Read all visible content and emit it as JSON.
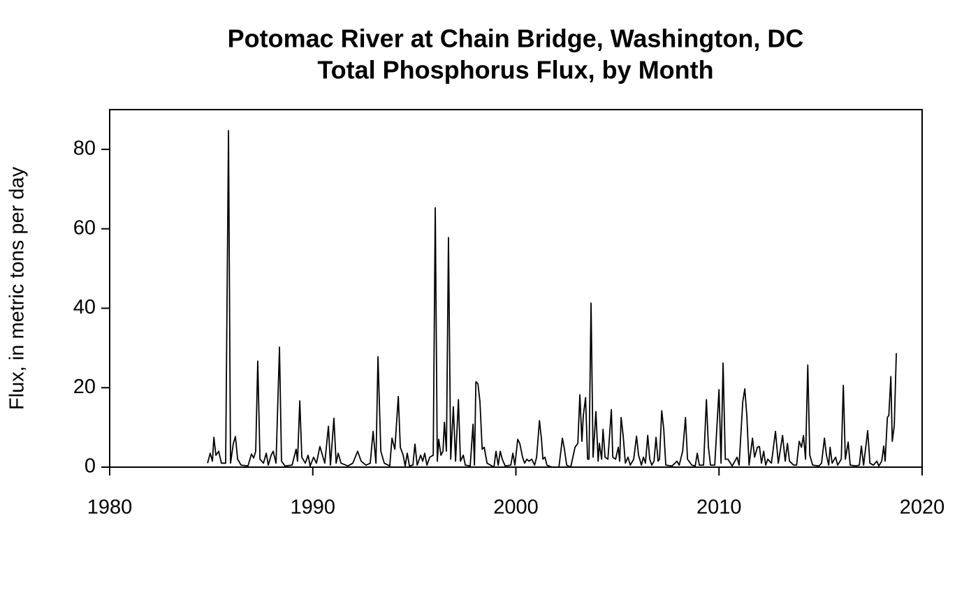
{
  "chart_data": {
    "type": "line",
    "title": "Potomac River at Chain Bridge, Washington, DC",
    "subtitle": "Total Phosphorus Flux, by Month",
    "ylabel": "Flux, in metric tons per day",
    "xlim": [
      1980,
      2020
    ],
    "xticks": [
      1980,
      1990,
      2000,
      2010,
      2020
    ],
    "ylim": [
      0,
      90
    ],
    "yticks": [
      0,
      20,
      40,
      60,
      80
    ],
    "series": [
      {
        "color": "#000000",
        "x": [
          1984.82,
          1984.95,
          1985.06,
          1985.13,
          1985.23,
          1985.37,
          1985.5,
          1985.71,
          1985.85,
          1985.95,
          1986.09,
          1986.19,
          1986.3,
          1986.47,
          1986.81,
          1986.98,
          1987.09,
          1987.19,
          1987.29,
          1987.4,
          1987.57,
          1987.71,
          1987.81,
          1987.95,
          1988.05,
          1988.19,
          1988.36,
          1988.46,
          1988.63,
          1988.98,
          1989.18,
          1989.25,
          1989.36,
          1989.46,
          1989.63,
          1989.77,
          1989.87,
          1990.04,
          1990.18,
          1990.35,
          1990.59,
          1990.77,
          1990.87,
          1991.04,
          1991.15,
          1991.25,
          1991.39,
          1991.73,
          1991.97,
          1992.21,
          1992.38,
          1992.62,
          1992.83,
          1992.97,
          1993.11,
          1993.21,
          1993.35,
          1993.52,
          1993.79,
          1993.9,
          1994.04,
          1994.21,
          1994.31,
          1994.45,
          1994.55,
          1994.65,
          1994.76,
          1994.93,
          1995.03,
          1995.14,
          1995.31,
          1995.41,
          1995.51,
          1995.62,
          1995.76,
          1995.93,
          1996.03,
          1996.13,
          1996.2,
          1996.31,
          1996.41,
          1996.48,
          1996.58,
          1996.68,
          1996.79,
          1996.92,
          1997.03,
          1997.17,
          1997.27,
          1997.41,
          1997.51,
          1997.75,
          1997.89,
          1997.96,
          1998.03,
          1998.13,
          1998.23,
          1998.34,
          1998.44,
          1998.58,
          1998.92,
          1999.02,
          1999.13,
          1999.23,
          1999.33,
          1999.47,
          1999.75,
          1999.85,
          1999.95,
          2000.09,
          2000.19,
          2000.33,
          2000.43,
          2000.54,
          2000.64,
          2000.78,
          2000.92,
          2001.02,
          2001.16,
          2001.26,
          2001.33,
          2001.43,
          2001.53,
          2001.77,
          2002.12,
          2002.29,
          2002.39,
          2002.5,
          2002.7,
          2002.91,
          2003.05,
          2003.15,
          2003.25,
          2003.32,
          2003.43,
          2003.53,
          2003.6,
          2003.7,
          2003.8,
          2003.94,
          2004.05,
          2004.11,
          2004.22,
          2004.29,
          2004.39,
          2004.53,
          2004.7,
          2004.77,
          2004.91,
          2005.04,
          2005.11,
          2005.18,
          2005.28,
          2005.39,
          2005.52,
          2005.63,
          2005.8,
          2005.94,
          2006.04,
          2006.18,
          2006.28,
          2006.38,
          2006.49,
          2006.59,
          2006.69,
          2006.8,
          2006.9,
          2007.0,
          2007.07,
          2007.18,
          2007.28,
          2007.38,
          2007.69,
          2007.83,
          2007.93,
          2008.04,
          2008.21,
          2008.35,
          2008.45,
          2008.66,
          2008.83,
          2008.93,
          2009.03,
          2009.24,
          2009.38,
          2009.48,
          2009.58,
          2009.79,
          2010.0,
          2010.1,
          2010.2,
          2010.31,
          2010.44,
          2010.65,
          2010.89,
          2010.99,
          2011.17,
          2011.27,
          2011.37,
          2011.48,
          2011.65,
          2011.75,
          2011.89,
          2011.99,
          2012.09,
          2012.2,
          2012.3,
          2012.4,
          2012.58,
          2012.78,
          2012.92,
          2013.13,
          2013.26,
          2013.37,
          2013.47,
          2013.68,
          2013.82,
          2013.95,
          2014.06,
          2014.16,
          2014.26,
          2014.37,
          2014.47,
          2014.61,
          2014.92,
          2015.05,
          2015.19,
          2015.29,
          2015.4,
          2015.47,
          2015.57,
          2015.74,
          2015.84,
          2016.02,
          2016.12,
          2016.22,
          2016.36,
          2016.46,
          2016.74,
          2016.91,
          2017.01,
          2017.12,
          2017.32,
          2017.43,
          2017.6,
          2017.77,
          2017.87,
          2018.01,
          2018.11,
          2018.18,
          2018.29,
          2018.36,
          2018.46,
          2018.53,
          2018.63,
          2018.73
        ],
        "values": [
          1,
          3.5,
          1.5,
          7.5,
          3,
          4,
          1,
          1,
          84.7,
          1,
          6,
          7.7,
          2,
          0.5,
          0.3,
          3.3,
          2.3,
          4,
          26.7,
          2,
          1,
          3.5,
          0.5,
          3,
          4,
          1,
          30.2,
          1.5,
          0.3,
          0.5,
          4.5,
          1.5,
          16.7,
          2.5,
          1,
          3,
          0.3,
          2.5,
          1,
          5.2,
          1,
          10.3,
          0.5,
          12.3,
          1,
          3.5,
          1,
          0.3,
          1,
          4,
          1.5,
          0.5,
          1,
          9,
          1,
          27.8,
          4,
          1,
          0.3,
          7.3,
          4.5,
          17.8,
          5,
          3,
          0.3,
          3.5,
          0.3,
          0.5,
          5.8,
          0.5,
          3,
          1.5,
          3.5,
          0.5,
          2.5,
          3,
          65.3,
          1.5,
          7,
          3,
          4,
          11.3,
          4,
          57.8,
          2,
          15.2,
          1.5,
          17,
          1.5,
          3,
          0.5,
          0.3,
          10.8,
          0.5,
          21.5,
          21,
          16.5,
          4.5,
          5,
          1,
          0,
          4,
          0.5,
          4,
          2,
          0.3,
          0.5,
          3.5,
          0.5,
          7,
          6,
          2.5,
          1,
          2,
          1.5,
          2,
          0.5,
          2.5,
          11.7,
          7,
          2,
          2.5,
          0.5,
          0,
          0,
          7.3,
          4.5,
          0.5,
          0,
          5,
          6,
          18.2,
          6.5,
          13,
          17.5,
          2,
          2,
          41.3,
          2.5,
          14,
          1.5,
          6,
          2,
          9.5,
          2.5,
          2,
          14.5,
          2.5,
          2,
          5,
          1.5,
          12.5,
          8,
          1,
          2.5,
          0.5,
          2,
          7.8,
          3,
          0.5,
          2.5,
          1,
          8,
          2,
          0.5,
          1.5,
          7.5,
          1.5,
          2,
          14.2,
          9.5,
          0.5,
          0.3,
          1,
          1.5,
          0.5,
          4,
          12.5,
          2,
          0.5,
          0.3,
          3.5,
          0.5,
          0.5,
          17,
          5,
          0.5,
          0.5,
          19.5,
          1,
          26.2,
          2,
          2,
          0.3,
          2.5,
          0.5,
          16.5,
          19.7,
          13,
          0.5,
          7.3,
          2.5,
          5,
          5.2,
          1,
          4,
          0.5,
          2,
          1,
          9,
          1,
          8,
          1.5,
          6,
          1.5,
          0.5,
          0.5,
          6.5,
          5,
          8,
          2,
          25.7,
          3,
          0.5,
          0.3,
          1,
          7.3,
          3,
          0.5,
          5,
          1,
          2.5,
          0.5,
          2,
          20.6,
          2,
          6.3,
          0.5,
          0.3,
          0.5,
          5.3,
          0.5,
          9.2,
          1,
          0.5,
          1.5,
          0.3,
          1.5,
          5.3,
          1.5,
          12.5,
          13,
          22.8,
          6.5,
          10.5,
          28.7
        ]
      }
    ]
  }
}
